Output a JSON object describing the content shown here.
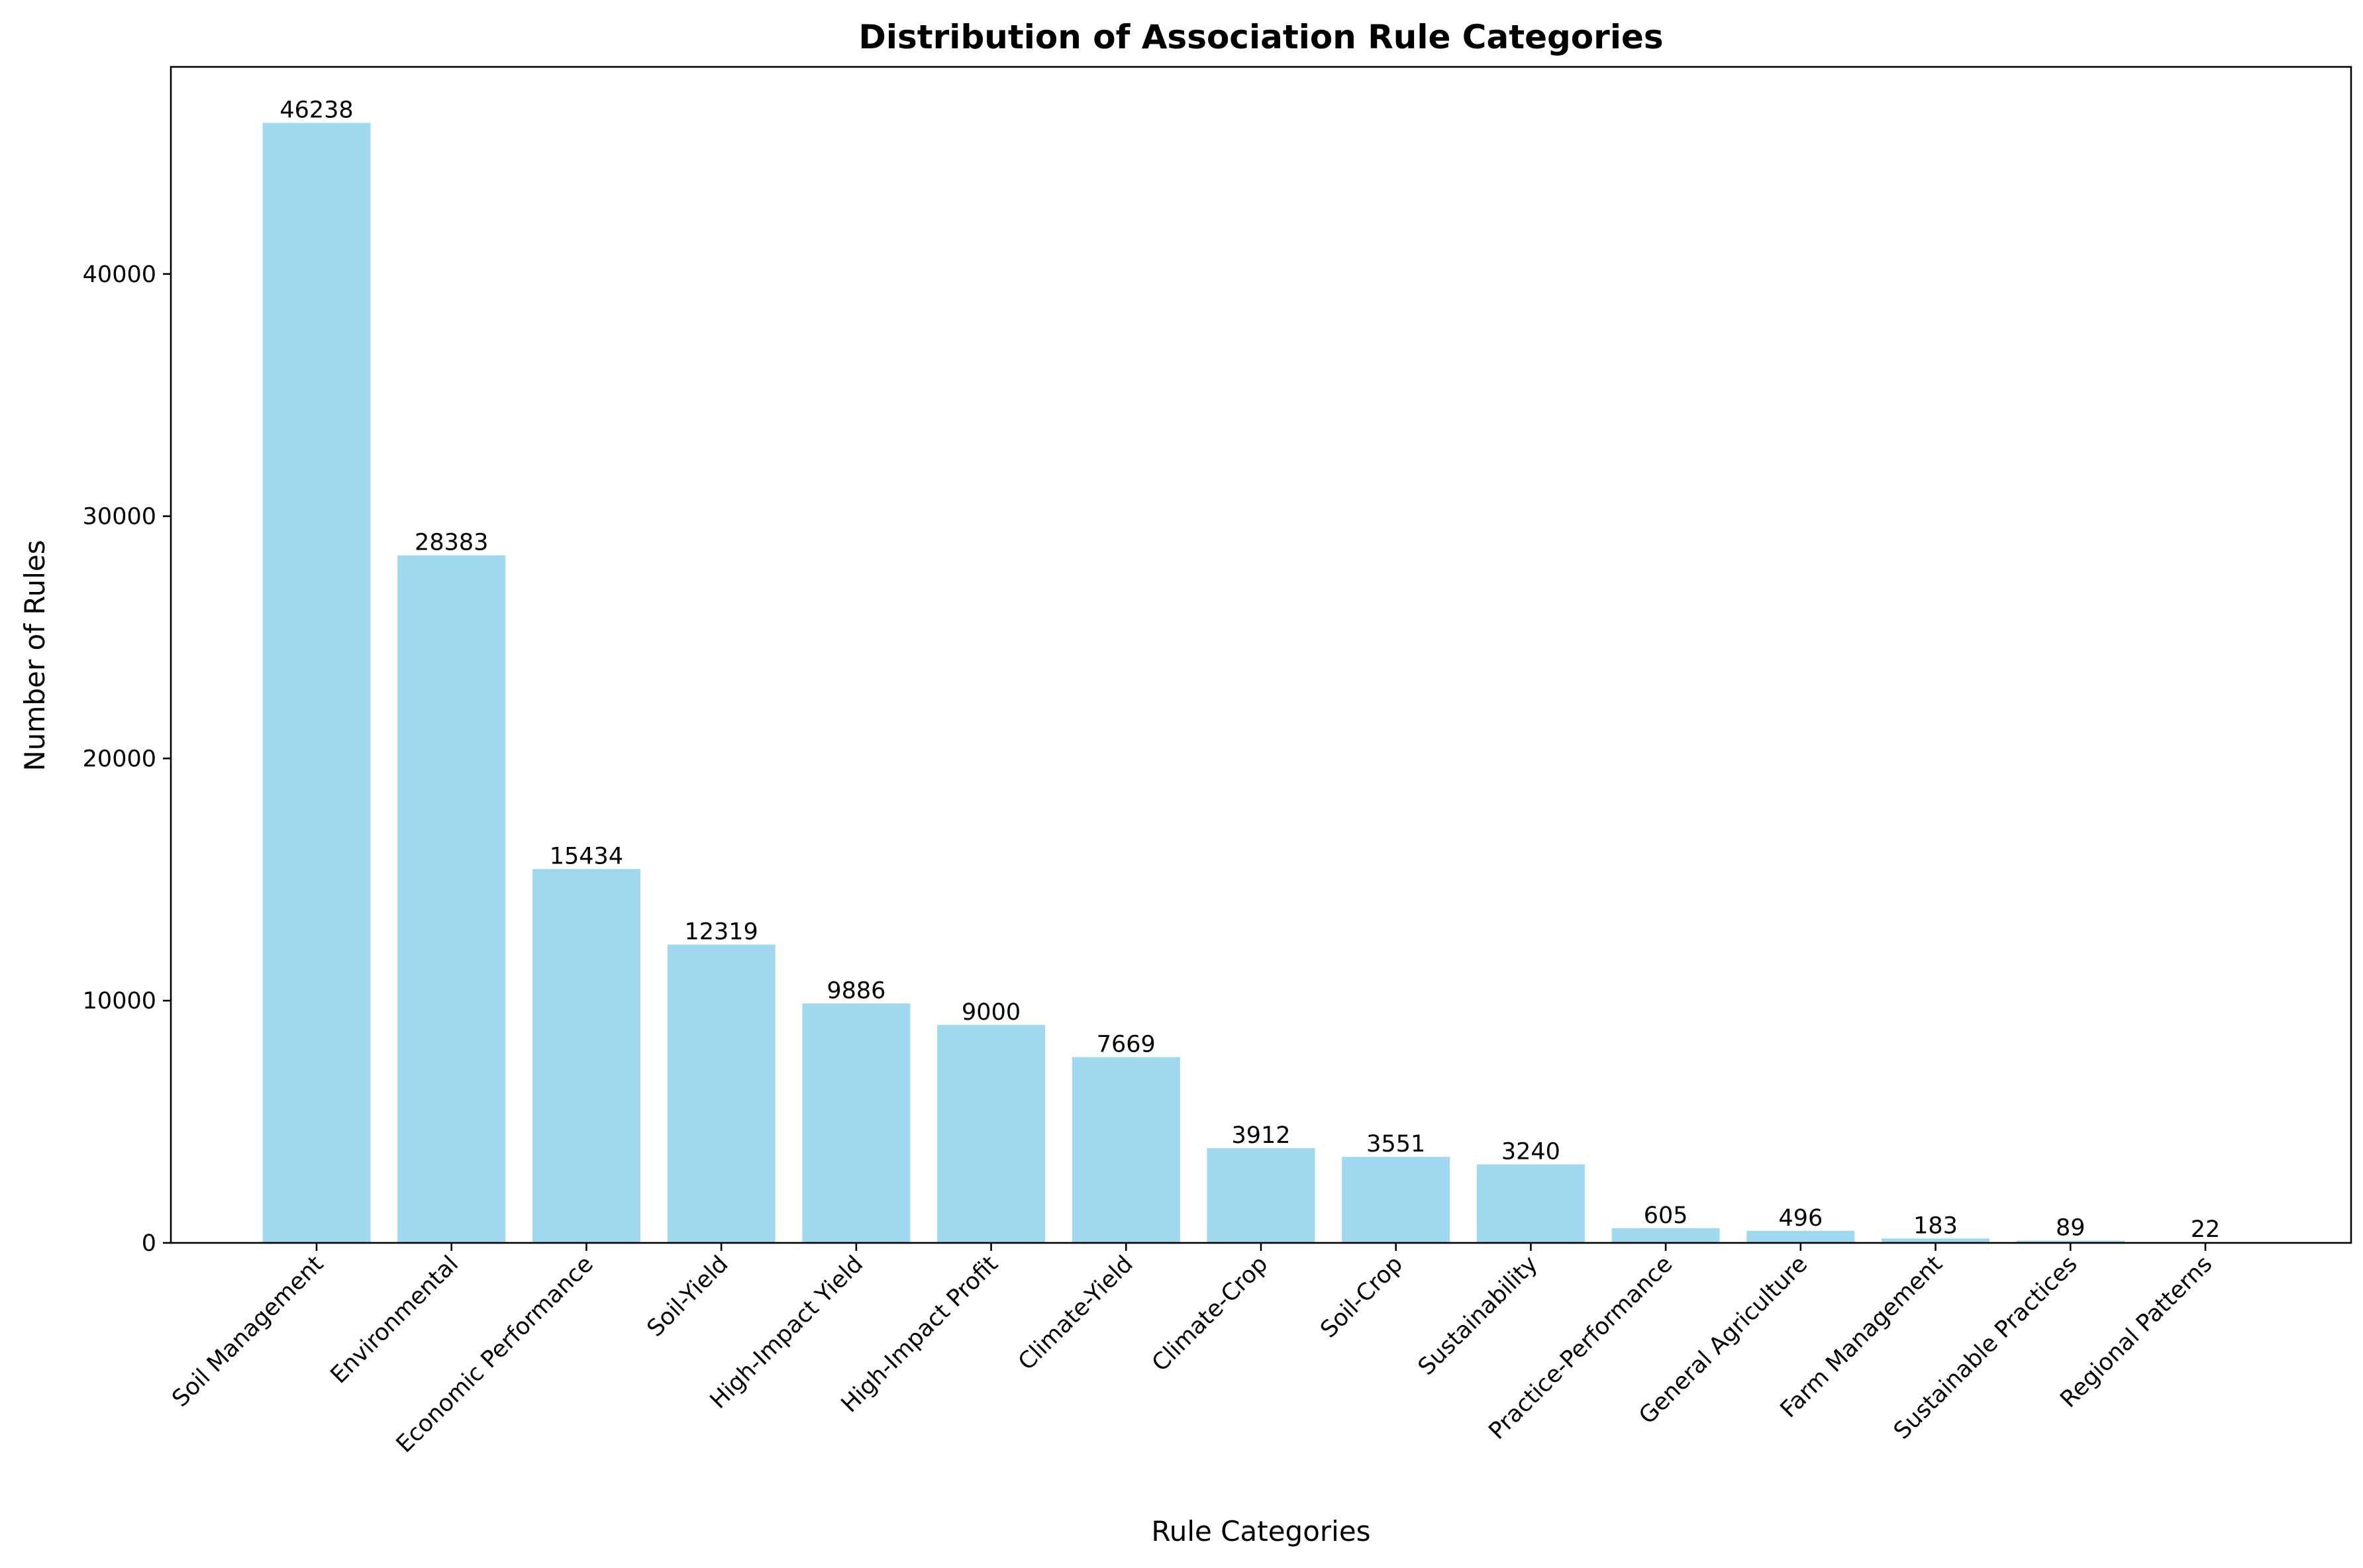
{
  "chart_data": {
    "type": "bar",
    "title": "Distribution of Association Rule Categories",
    "xlabel": "Rule Categories",
    "ylabel": "Number of Rules",
    "categories": [
      "Soil Management",
      "Environmental",
      "Economic Performance",
      "Soil-Yield",
      "High-Impact Yield",
      "High-Impact Profit",
      "Climate-Yield",
      "Climate-Crop",
      "Soil-Crop",
      "Sustainability",
      "Practice-Performance",
      "General Agriculture",
      "Farm Management",
      "Sustainable Practices",
      "Regional Patterns"
    ],
    "values": [
      46238,
      28383,
      15434,
      12319,
      9886,
      9000,
      7669,
      3912,
      3551,
      3240,
      605,
      496,
      183,
      89,
      22
    ],
    "value_labels": [
      "46238",
      "28383",
      "15434",
      "12319",
      "9886",
      "9000",
      "7669",
      "3912",
      "3551",
      "3240",
      "605",
      "496",
      "183",
      "89",
      "22"
    ],
    "ylim": [
      0,
      48550
    ],
    "yticks": [
      0,
      10000,
      20000,
      30000,
      40000
    ],
    "ytick_labels": [
      "0",
      "10000",
      "20000",
      "30000",
      "40000"
    ],
    "grid": false,
    "bar_color": "#87CEEB",
    "bar_opacity": 0.8
  }
}
